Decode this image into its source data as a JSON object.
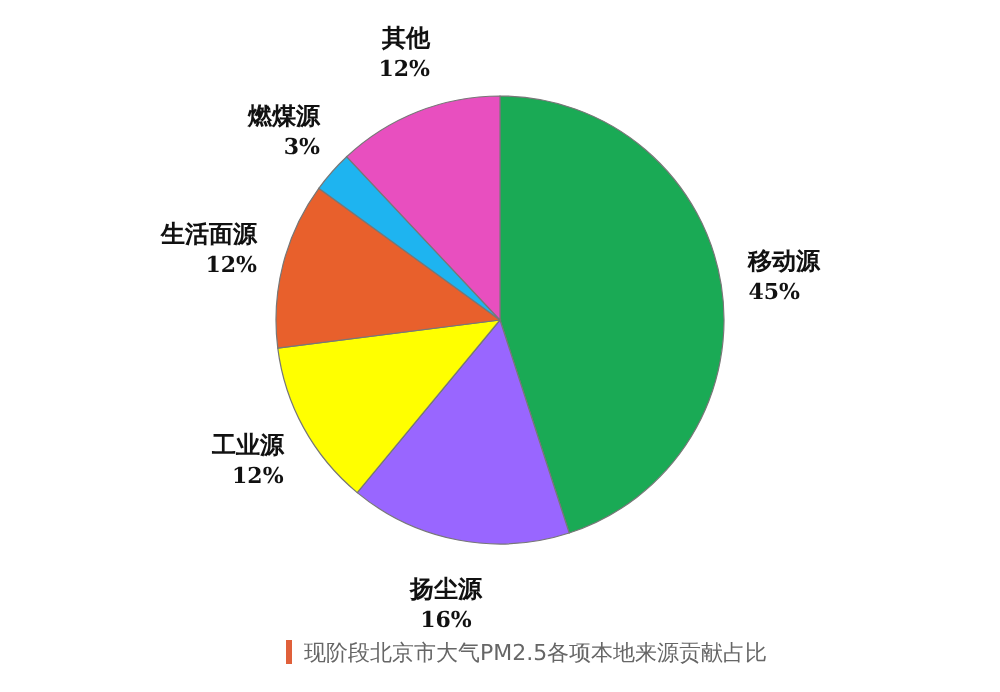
{
  "chart_data": {
    "type": "pie",
    "categories": [
      "移动源",
      "扬尘源",
      "工业源",
      "生活面源",
      "燃煤源",
      "其他"
    ],
    "values": [
      45,
      16,
      12,
      12,
      3,
      12
    ],
    "colors": [
      "#1aaa55",
      "#9966ff",
      "#ffff00",
      "#e8602c",
      "#1eb4f0",
      "#e84fbf"
    ],
    "value_labels": [
      "45%",
      "16%",
      "12%",
      "12%",
      "3%",
      "12%"
    ],
    "annotations": [
      "现阶段北京市大气PM2.5各项本地来源贡献占比"
    ]
  }
}
